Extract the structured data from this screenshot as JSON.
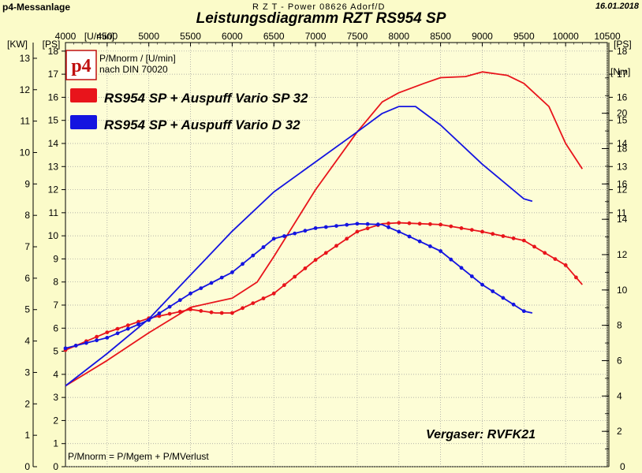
{
  "header": {
    "left": "p4-Messanlage",
    "center": "R Z T - Power   08626 Adorf/D",
    "date": "16.01.2018",
    "title": "Leistungsdiagramm RZT  RS954 SP"
  },
  "logo": {
    "text": "p4"
  },
  "notes": {
    "unit_line1": "P/Mnorm / [U/min]",
    "unit_line2": "nach DIN 70020",
    "formula": "P/Mnorm = P/Mgem + P/MVerlust",
    "carburetor": "Vergaser: RVFK21"
  },
  "colors": {
    "red": "#e8141b",
    "blue": "#1414e0",
    "grid": "#9a9a9a",
    "background": "#fbfbc9"
  },
  "chart_data": {
    "type": "line",
    "x_axis": {
      "label": "[U/min]",
      "range": [
        4000,
        10500
      ],
      "ticks": [
        4000,
        4500,
        5000,
        5500,
        6000,
        6500,
        7000,
        7500,
        8000,
        8500,
        9000,
        9500,
        10000,
        10500
      ]
    },
    "y_axis_kw": {
      "label": "[KW]",
      "range": [
        0,
        13.5
      ],
      "ticks": [
        0,
        1,
        2,
        3,
        4,
        5,
        6,
        7,
        8,
        9,
        10,
        11,
        12,
        13
      ]
    },
    "y_axis_ps_left": {
      "label": "[PS]",
      "range": [
        0,
        18.37
      ],
      "ticks": [
        0,
        1,
        2,
        3,
        4,
        5,
        6,
        7,
        8,
        9,
        10,
        11,
        12,
        13,
        14,
        15,
        16,
        17,
        18
      ]
    },
    "y_axis_ps_right": {
      "label": "[PS]",
      "ticks": [
        11,
        12,
        13,
        14,
        15,
        16,
        17,
        18
      ]
    },
    "y_axis_nm": {
      "label": "[Nm]",
      "range": [
        0,
        24
      ],
      "ticks": [
        2,
        4,
        6,
        8,
        10,
        12,
        14,
        16,
        18,
        20
      ]
    },
    "series": [
      {
        "name": "RS954 SP + Auspuff Vario SP 32",
        "color": "#e8141b",
        "power_ps": [
          [
            4000,
            3.5
          ],
          [
            4500,
            4.6
          ],
          [
            5000,
            5.8
          ],
          [
            5500,
            6.9
          ],
          [
            6000,
            7.3
          ],
          [
            6300,
            8.0
          ],
          [
            6500,
            9.1
          ],
          [
            7000,
            12.0
          ],
          [
            7500,
            14.5
          ],
          [
            7800,
            15.8
          ],
          [
            8000,
            16.2
          ],
          [
            8300,
            16.6
          ],
          [
            8500,
            16.85
          ],
          [
            8800,
            16.9
          ],
          [
            9000,
            17.1
          ],
          [
            9300,
            16.95
          ],
          [
            9500,
            16.6
          ],
          [
            9800,
            15.6
          ],
          [
            10000,
            14.0
          ],
          [
            10200,
            12.9
          ]
        ],
        "torque_nm": [
          [
            4000,
            6.6
          ],
          [
            4500,
            7.6
          ],
          [
            5000,
            8.4
          ],
          [
            5500,
            8.9
          ],
          [
            5800,
            8.7
          ],
          [
            6000,
            8.7
          ],
          [
            6500,
            9.8
          ],
          [
            7000,
            11.7
          ],
          [
            7500,
            13.3
          ],
          [
            7800,
            13.75
          ],
          [
            8000,
            13.8
          ],
          [
            8500,
            13.7
          ],
          [
            9000,
            13.3
          ],
          [
            9500,
            12.8
          ],
          [
            10000,
            11.4
          ],
          [
            10200,
            10.3
          ]
        ]
      },
      {
        "name": "RS954 SP + Auspuff Vario D 32",
        "color": "#1414e0",
        "power_ps": [
          [
            4000,
            3.5
          ],
          [
            4500,
            4.9
          ],
          [
            5000,
            6.4
          ],
          [
            5500,
            8.3
          ],
          [
            6000,
            10.2
          ],
          [
            6500,
            11.9
          ],
          [
            7000,
            13.2
          ],
          [
            7500,
            14.5
          ],
          [
            7800,
            15.3
          ],
          [
            8000,
            15.6
          ],
          [
            8200,
            15.6
          ],
          [
            8500,
            14.8
          ],
          [
            9000,
            13.1
          ],
          [
            9300,
            12.2
          ],
          [
            9500,
            11.6
          ],
          [
            9600,
            11.5
          ]
        ],
        "torque_nm": [
          [
            4000,
            6.7
          ],
          [
            4500,
            7.3
          ],
          [
            5000,
            8.3
          ],
          [
            5500,
            9.8
          ],
          [
            6000,
            11.0
          ],
          [
            6500,
            12.9
          ],
          [
            7000,
            13.5
          ],
          [
            7500,
            13.75
          ],
          [
            7800,
            13.7
          ],
          [
            8000,
            13.3
          ],
          [
            8500,
            12.2
          ],
          [
            9000,
            10.3
          ],
          [
            9500,
            8.8
          ],
          [
            9600,
            8.7
          ]
        ]
      }
    ]
  }
}
